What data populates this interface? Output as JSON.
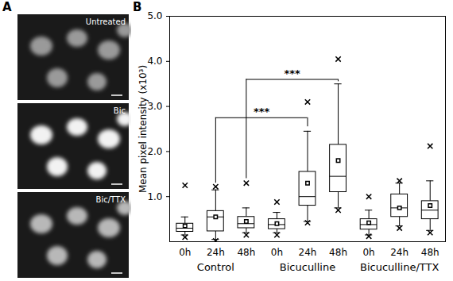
{
  "panel_labels": [
    "A",
    "B"
  ],
  "images": [
    {
      "label": "Untreated"
    },
    {
      "label": "Bic"
    },
    {
      "label": "Bic/TTX"
    }
  ],
  "chart_data": {
    "type": "box",
    "y_label": "Mean pixel intensity (x10³)",
    "categories": [
      "0h",
      "24h",
      "48h",
      "0h",
      "24h",
      "48h",
      "0h",
      "24h",
      "48h"
    ],
    "groups": [
      "Control",
      "Control",
      "Control",
      "Bicuculline",
      "Bicuculline",
      "Bicuculline",
      "Bicuculline/TTX",
      "Bicuculline/TTX",
      "Bicuculline/TTX"
    ],
    "whisker_low": [
      0.15,
      0.05,
      0.2,
      0.2,
      0.45,
      0.75,
      0.15,
      0.35,
      0.25
    ],
    "q1": [
      0.22,
      0.23,
      0.3,
      0.28,
      0.8,
      1.1,
      0.27,
      0.55,
      0.5
    ],
    "median": [
      0.3,
      0.55,
      0.4,
      0.38,
      1.0,
      1.45,
      0.38,
      0.75,
      0.7
    ],
    "q3": [
      0.4,
      0.68,
      0.55,
      0.5,
      1.55,
      2.15,
      0.5,
      1.05,
      0.9
    ],
    "whisker_high": [
      0.55,
      1.15,
      0.75,
      0.65,
      2.45,
      3.5,
      0.7,
      1.3,
      1.35
    ],
    "mean": [
      0.35,
      0.55,
      0.45,
      0.4,
      1.3,
      1.8,
      0.42,
      0.75,
      0.8
    ],
    "min": [
      0.1,
      0.02,
      0.15,
      0.15,
      0.42,
      0.7,
      0.12,
      0.3,
      0.2
    ],
    "max": [
      1.25,
      1.22,
      1.3,
      0.88,
      3.1,
      4.05,
      1.0,
      1.35,
      2.12
    ],
    "brackets": [
      {
        "from": 1,
        "to": 4,
        "y": 2.75,
        "left_end": 1.3,
        "right_end": 2.55,
        "label": "***"
      },
      {
        "from": 2,
        "to": 5,
        "y": 3.6,
        "left_end": 1.4,
        "right_end": 3.55,
        "label": "***"
      }
    ],
    "ylim": [
      0,
      5
    ],
    "yticks": [
      1,
      2,
      3,
      4,
      5
    ]
  }
}
